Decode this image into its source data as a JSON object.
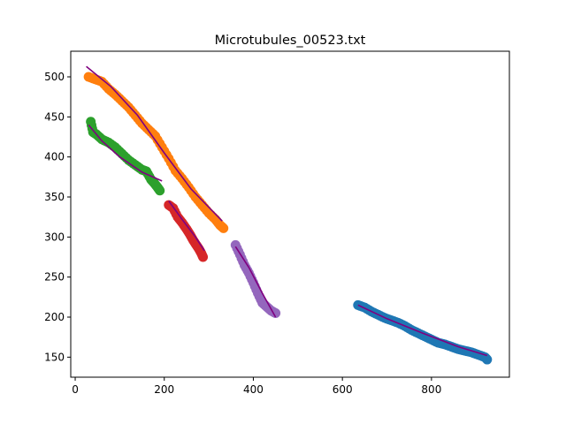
{
  "chart_data": {
    "type": "scatter",
    "title": "Microtubules_00523.txt",
    "xlabel": "",
    "ylabel": "",
    "xlim": [
      -10,
      975
    ],
    "ylim": [
      125,
      532
    ],
    "x_ticks": [
      0,
      200,
      400,
      600,
      800
    ],
    "y_ticks": [
      150,
      200,
      250,
      300,
      350,
      400,
      450,
      500
    ],
    "grid": false,
    "legend": "none",
    "fit_color": "#800080",
    "series": [
      {
        "color": "#1f77b4",
        "points": [
          [
            635,
            215
          ],
          [
            650,
            212
          ],
          [
            665,
            207
          ],
          [
            680,
            203
          ],
          [
            695,
            199
          ],
          [
            710,
            196
          ],
          [
            725,
            193
          ],
          [
            740,
            189
          ],
          [
            755,
            184
          ],
          [
            770,
            180
          ],
          [
            785,
            176
          ],
          [
            800,
            172
          ],
          [
            815,
            168
          ],
          [
            830,
            166
          ],
          [
            845,
            163
          ],
          [
            860,
            160
          ],
          [
            875,
            158
          ],
          [
            890,
            156
          ],
          [
            905,
            153
          ],
          [
            920,
            150
          ],
          [
            925,
            147
          ]
        ],
        "fit": [
          [
            635,
            215
          ],
          [
            700,
            198
          ],
          [
            780,
            180
          ],
          [
            860,
            163
          ],
          [
            925,
            152
          ]
        ]
      },
      {
        "color": "#ff7f0e",
        "points": [
          [
            30,
            500
          ],
          [
            45,
            497
          ],
          [
            60,
            494
          ],
          [
            75,
            485
          ],
          [
            90,
            478
          ],
          [
            105,
            470
          ],
          [
            120,
            462
          ],
          [
            135,
            452
          ],
          [
            150,
            442
          ],
          [
            165,
            434
          ],
          [
            180,
            426
          ],
          [
            195,
            412
          ],
          [
            210,
            398
          ],
          [
            225,
            383
          ],
          [
            240,
            373
          ],
          [
            255,
            362
          ],
          [
            270,
            350
          ],
          [
            285,
            340
          ],
          [
            300,
            330
          ],
          [
            315,
            322
          ],
          [
            325,
            315
          ],
          [
            333,
            311
          ]
        ],
        "fit": [
          [
            25,
            513
          ],
          [
            80,
            488
          ],
          [
            140,
            452
          ],
          [
            200,
            405
          ],
          [
            260,
            360
          ],
          [
            330,
            320
          ]
        ]
      },
      {
        "color": "#2ca02c",
        "points": [
          [
            35,
            444
          ],
          [
            40,
            431
          ],
          [
            48,
            428
          ],
          [
            60,
            422
          ],
          [
            75,
            418
          ],
          [
            90,
            412
          ],
          [
            105,
            404
          ],
          [
            120,
            396
          ],
          [
            135,
            390
          ],
          [
            150,
            384
          ],
          [
            160,
            382
          ],
          [
            170,
            372
          ],
          [
            178,
            367
          ],
          [
            185,
            362
          ],
          [
            190,
            358
          ]
        ],
        "fit": [
          [
            30,
            440
          ],
          [
            60,
            420
          ],
          [
            100,
            400
          ],
          [
            150,
            381
          ],
          [
            195,
            370
          ]
        ]
      },
      {
        "color": "#d62728",
        "points": [
          [
            210,
            340
          ],
          [
            220,
            336
          ],
          [
            230,
            325
          ],
          [
            240,
            318
          ],
          [
            250,
            310
          ],
          [
            258,
            303
          ],
          [
            265,
            296
          ],
          [
            272,
            290
          ],
          [
            278,
            285
          ],
          [
            283,
            280
          ],
          [
            287,
            275
          ]
        ],
        "fit": [
          [
            210,
            345
          ],
          [
            240,
            322
          ],
          [
            270,
            300
          ],
          [
            290,
            283
          ]
        ]
      },
      {
        "color": "#9467bd",
        "points": [
          [
            360,
            290
          ],
          [
            370,
            278
          ],
          [
            380,
            265
          ],
          [
            390,
            255
          ],
          [
            400,
            243
          ],
          [
            410,
            230
          ],
          [
            420,
            218
          ],
          [
            430,
            213
          ],
          [
            440,
            208
          ],
          [
            450,
            205
          ]
        ],
        "fit": [
          [
            360,
            288
          ],
          [
            390,
            262
          ],
          [
            420,
            230
          ],
          [
            450,
            200
          ]
        ]
      }
    ]
  }
}
